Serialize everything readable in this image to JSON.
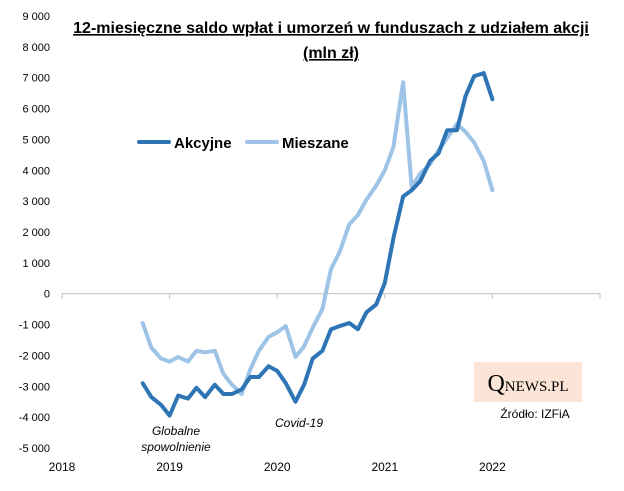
{
  "chart_data": {
    "type": "line",
    "title": "12-miesięczne saldo wpłat i umorzeń w funduszach z udziałem akcji",
    "subtitle": "(mln zł)",
    "x_ticks": [
      "2018",
      "2019",
      "2020",
      "2021",
      "2022"
    ],
    "y_ticks": [
      "9 000",
      "8 000",
      "7 000",
      "6 000",
      "5 000",
      "4 000",
      "3 000",
      "2 000",
      "1 000",
      "0",
      "-1 000",
      "-2 000",
      "-3 000",
      "-4 000",
      "-5 000"
    ],
    "ylim": [
      -5000,
      9000
    ],
    "xlim": [
      2018.0,
      2023.0
    ],
    "grid": false,
    "legend_position": "top-left",
    "series": [
      {
        "name": "Akcyjne",
        "color": "#2e75b6",
        "x": [
          2018.75,
          2018.83,
          2018.92,
          2019.0,
          2019.08,
          2019.17,
          2019.25,
          2019.33,
          2019.42,
          2019.5,
          2019.58,
          2019.67,
          2019.75,
          2019.83,
          2019.92,
          2020.0,
          2020.08,
          2020.17,
          2020.25,
          2020.33,
          2020.42,
          2020.5,
          2020.58,
          2020.67,
          2020.75,
          2020.83,
          2020.92,
          2021.0,
          2021.08,
          2021.17,
          2021.25,
          2021.33,
          2021.42,
          2021.5,
          2021.58,
          2021.67,
          2021.75,
          2021.83,
          2021.92,
          2022.0
        ],
        "values": [
          -2900,
          -3350,
          -3600,
          -3950,
          -3300,
          -3400,
          -3050,
          -3350,
          -2950,
          -3250,
          -3250,
          -3100,
          -2700,
          -2700,
          -2350,
          -2500,
          -2900,
          -3500,
          -2950,
          -2100,
          -1850,
          -1150,
          -1050,
          -950,
          -1150,
          -600,
          -350,
          350,
          1800,
          3150,
          3350,
          3650,
          4300,
          4550,
          5300,
          5300,
          6400,
          7050,
          7150,
          6300
        ]
      },
      {
        "name": "Mieszane",
        "color": "#9dc3e6",
        "x": [
          2018.75,
          2018.83,
          2018.92,
          2019.0,
          2019.08,
          2019.17,
          2019.25,
          2019.33,
          2019.42,
          2019.5,
          2019.58,
          2019.67,
          2019.75,
          2019.83,
          2019.92,
          2020.0,
          2020.08,
          2020.17,
          2020.25,
          2020.33,
          2020.42,
          2020.5,
          2020.58,
          2020.67,
          2020.75,
          2020.83,
          2020.92,
          2021.0,
          2021.08,
          2021.17,
          2021.25,
          2021.33,
          2021.42,
          2021.5,
          2021.58,
          2021.67,
          2021.75,
          2021.83,
          2021.92,
          2022.0
        ],
        "values": [
          -950,
          -1750,
          -2100,
          -2200,
          -2050,
          -2200,
          -1850,
          -1900,
          -1850,
          -2600,
          -2950,
          -3250,
          -2450,
          -1850,
          -1400,
          -1250,
          -1050,
          -2050,
          -1700,
          -1100,
          -500,
          800,
          1350,
          2250,
          2550,
          3050,
          3500,
          4000,
          4750,
          6850,
          3450,
          3900,
          4200,
          4650,
          5050,
          5500,
          5250,
          4900,
          4300,
          3350
        ]
      }
    ],
    "annotations": [
      {
        "text_lines": [
          "Globalne",
          "spowolnienie"
        ],
        "x": 2019.17,
        "y": -4300
      },
      {
        "text_lines": [
          "Covid-19"
        ],
        "x": 2020.17,
        "y": -4200
      }
    ],
    "logo": {
      "big": "Q",
      "rest": "NEWS.PL",
      "bg": "#fce4d6"
    },
    "source": "Źródło: IZFiA"
  }
}
